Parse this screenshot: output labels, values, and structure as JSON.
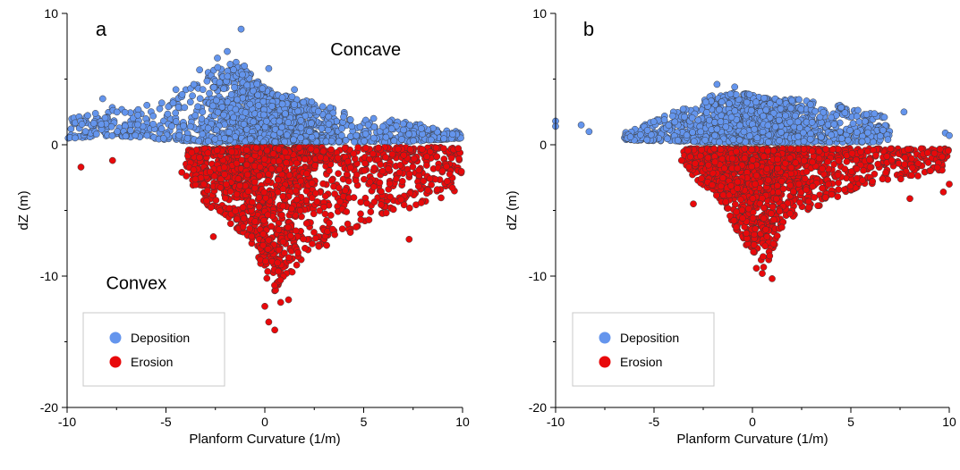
{
  "colors": {
    "deposition": "#6495ED",
    "erosion": "#E8090B",
    "axis": "#000000",
    "marker_edge": "#3a3a3a"
  },
  "chart_data": [
    {
      "type": "scatter",
      "panel_label": "a",
      "xlabel": "Planform Curvature (1/m)",
      "ylabel": "dZ (m)",
      "xlim": [
        -10,
        10
      ],
      "ylim": [
        -20,
        10
      ],
      "xticks": [
        -10,
        -5,
        0,
        5,
        10
      ],
      "yticks": [
        -20,
        -10,
        0,
        10
      ],
      "grid": false,
      "legend_position": "bottom-left",
      "annotations": [
        {
          "text": "Concave",
          "x": 5.1,
          "y": 6.8
        },
        {
          "text": "Convex",
          "x": -6.5,
          "y": -11
        }
      ],
      "series": [
        {
          "name": "Deposition",
          "color": "#6495ED",
          "cloud": [
            [
              -10,
              0.5,
              2.0
            ],
            [
              -9.5,
              0.5,
              2.3
            ],
            [
              -9,
              0.6,
              2.3
            ],
            [
              -8,
              0.6,
              3.0
            ],
            [
              -7,
              0.6,
              2.6
            ],
            [
              -6,
              0.5,
              3.0
            ],
            [
              -5,
              0.4,
              3.4
            ],
            [
              -4,
              0.3,
              4.2
            ],
            [
              -3,
              0.2,
              5.5
            ],
            [
              -2,
              0.2,
              6.5
            ],
            [
              -1,
              0.2,
              6.2
            ],
            [
              -0.5,
              0.2,
              5.0
            ],
            [
              0,
              0.2,
              4.5
            ],
            [
              0.5,
              0.2,
              4.0
            ],
            [
              1,
              0.2,
              3.8
            ],
            [
              2,
              0.2,
              3.5
            ],
            [
              3,
              0.2,
              3.0
            ],
            [
              4,
              0.2,
              2.6
            ],
            [
              5,
              0.2,
              2.1
            ],
            [
              6,
              0.2,
              2.0
            ],
            [
              7,
              0.2,
              1.8
            ],
            [
              8,
              0.3,
              1.5
            ],
            [
              9,
              0.4,
              1.2
            ],
            [
              10,
              0.5,
              1.0
            ]
          ],
          "outliers": [
            [
              -1.2,
              8.8
            ],
            [
              -1.9,
              7.1
            ],
            [
              -2.4,
              6.6
            ],
            [
              -3.3,
              5.7
            ],
            [
              0.2,
              5.8
            ],
            [
              -8.2,
              3.5
            ],
            [
              1.5,
              4.2
            ],
            [
              7.0,
              1.6
            ],
            [
              9.5,
              0.8
            ],
            [
              -4.5,
              4.2
            ]
          ]
        },
        {
          "name": "Erosion",
          "color": "#E8090B",
          "cloud": [
            [
              -4,
              -0.4,
              -2.5
            ],
            [
              -3.5,
              -0.4,
              -3.5
            ],
            [
              -3,
              -0.3,
              -4.5
            ],
            [
              -2,
              -0.3,
              -5.8
            ],
            [
              -1,
              -0.2,
              -7.0
            ],
            [
              -0.5,
              -0.2,
              -8.0
            ],
            [
              0,
              -0.2,
              -10.0
            ],
            [
              0.5,
              -0.2,
              -11.5
            ],
            [
              1,
              -0.2,
              -10.5
            ],
            [
              1.5,
              -0.2,
              -9.5
            ],
            [
              2,
              -0.2,
              -8.5
            ],
            [
              3,
              -0.2,
              -8.0
            ],
            [
              4,
              -0.2,
              -7.0
            ],
            [
              5,
              -0.2,
              -6.2
            ],
            [
              6,
              -0.2,
              -5.5
            ],
            [
              7,
              -0.2,
              -5.0
            ],
            [
              8,
              -0.2,
              -4.5
            ],
            [
              9,
              -0.2,
              -4.0
            ],
            [
              10,
              -0.3,
              -3.5
            ]
          ],
          "outliers": [
            [
              -9.3,
              -1.7
            ],
            [
              -7.7,
              -1.2
            ],
            [
              -4.2,
              -2.1
            ],
            [
              0.5,
              -14.1
            ],
            [
              0.2,
              -13.5
            ],
            [
              0.0,
              -12.3
            ],
            [
              0.8,
              -12.0
            ],
            [
              7.3,
              -7.2
            ],
            [
              -2.6,
              -7.0
            ],
            [
              1.2,
              -11.8
            ]
          ]
        }
      ]
    },
    {
      "type": "scatter",
      "panel_label": "b",
      "xlabel": "Planform Curvature (1/m)",
      "ylabel": "dZ (m)",
      "xlim": [
        -10,
        10
      ],
      "ylim": [
        -20,
        10
      ],
      "xticks": [
        -10,
        -5,
        0,
        5,
        10
      ],
      "yticks": [
        -20,
        -10,
        0,
        10
      ],
      "grid": false,
      "legend_position": "bottom-left",
      "annotations": [],
      "series": [
        {
          "name": "Deposition",
          "color": "#6495ED",
          "cloud": [
            [
              -6.5,
              0.4,
              0.9
            ],
            [
              -5.5,
              0.3,
              1.5
            ],
            [
              -5,
              0.3,
              2.0
            ],
            [
              -4,
              0.3,
              2.5
            ],
            [
              -3,
              0.2,
              3.0
            ],
            [
              -2,
              0.2,
              3.8
            ],
            [
              -1,
              0.2,
              4.0
            ],
            [
              -0.5,
              0.2,
              4.0
            ],
            [
              0,
              0.2,
              3.8
            ],
            [
              0.5,
              0.2,
              3.6
            ],
            [
              1,
              0.2,
              3.5
            ],
            [
              2,
              0.2,
              3.5
            ],
            [
              3,
              0.2,
              3.4
            ],
            [
              4,
              0.2,
              3.2
            ],
            [
              5,
              0.2,
              2.8
            ],
            [
              6,
              0.2,
              2.5
            ],
            [
              7,
              0.3,
              2.0
            ]
          ],
          "outliers": [
            [
              -10,
              1.8
            ],
            [
              -10,
              1.4
            ],
            [
              -8.7,
              1.5
            ],
            [
              -8.3,
              1.0
            ],
            [
              -1.8,
              4.6
            ],
            [
              -0.9,
              4.4
            ],
            [
              7.7,
              2.5
            ],
            [
              9.8,
              0.9
            ],
            [
              10,
              0.7
            ],
            [
              -6.2,
              0.6
            ]
          ]
        },
        {
          "name": "Erosion",
          "color": "#E8090B",
          "cloud": [
            [
              -3.5,
              -0.3,
              -1.2
            ],
            [
              -3,
              -0.3,
              -2.5
            ],
            [
              -2,
              -0.3,
              -3.6
            ],
            [
              -1.5,
              -0.3,
              -4.6
            ],
            [
              -1,
              -0.3,
              -6.0
            ],
            [
              -0.5,
              -0.3,
              -7.2
            ],
            [
              0,
              -0.3,
              -8.5
            ],
            [
              0.5,
              -0.3,
              -9.5
            ],
            [
              1,
              -0.3,
              -8.5
            ],
            [
              1.5,
              -0.3,
              -6.8
            ],
            [
              2,
              -0.3,
              -5.6
            ],
            [
              3,
              -0.3,
              -5.0
            ],
            [
              4,
              -0.3,
              -4.2
            ],
            [
              5,
              -0.3,
              -3.5
            ],
            [
              6,
              -0.3,
              -3.0
            ],
            [
              7,
              -0.3,
              -2.8
            ],
            [
              8,
              -0.3,
              -2.5
            ],
            [
              9,
              -0.3,
              -2.2
            ],
            [
              10,
              -0.3,
              -1.8
            ]
          ],
          "outliers": [
            [
              1.0,
              -10.2
            ],
            [
              0.5,
              -9.8
            ],
            [
              -3.0,
              -4.5
            ],
            [
              8.0,
              -4.1
            ],
            [
              9.7,
              -3.6
            ],
            [
              10,
              -3.0
            ],
            [
              -3.6,
              -1.2
            ],
            [
              0.2,
              -9.4
            ]
          ]
        }
      ]
    }
  ]
}
